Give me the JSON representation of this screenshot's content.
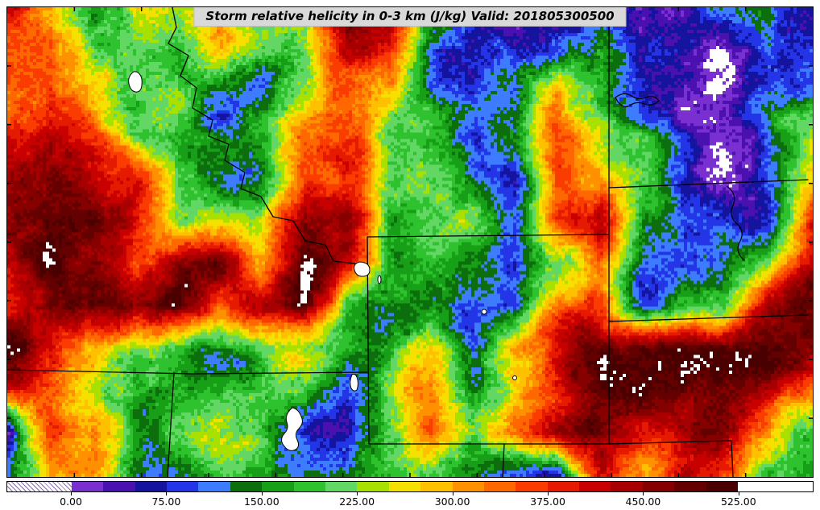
{
  "title": {
    "text": "Storm relative helicity in 0-3 km (J/kg) Valid: 201805300500",
    "background": "#d9d9d9",
    "text_color": "#000000"
  },
  "colorbar": {
    "ticks": [
      "0.00",
      "75.00",
      "150.00",
      "225.00",
      "300.00",
      "375.00",
      "450.00",
      "525.00"
    ],
    "tick_values": [
      0,
      75,
      150,
      225,
      300,
      375,
      450,
      525
    ],
    "bin_size": 25,
    "min": 0,
    "max": 525,
    "under_style": "hatched-white",
    "over_color": "#ffffff",
    "colors": [
      "#7a2fd0",
      "#4a10b0",
      "#14149e",
      "#2335e6",
      "#3d7bff",
      "#0d6e0d",
      "#17a017",
      "#2fc22f",
      "#63d763",
      "#a8e000",
      "#f5e000",
      "#ffc000",
      "#ff9000",
      "#ff6800",
      "#fb3c00",
      "#e61a00",
      "#c90000",
      "#a80000",
      "#860000",
      "#650000",
      "#4a0000"
    ]
  },
  "chart_data": {
    "type": "heatmap",
    "title": "Storm relative helicity in 0-3 km (J/kg) Valid: 201805300500",
    "units": "J/kg",
    "valid_time": "201805300500",
    "colorbar_ticks": [
      0,
      75,
      150,
      225,
      300,
      375,
      450,
      525
    ],
    "value_range": [
      -50,
      585
    ],
    "region": "Northern Rockies and High Plains (MT, ID, WY, UT, CO, SD, NE, NV)",
    "field_grid_note": "Approximate 20x12 grid of storm-relative helicity values (J/kg) sampled row-major from top-left to bottom-right of the map; <0 renders hatched/white, >525 renders white.",
    "field_grid": [
      [
        380,
        330,
        170,
        200,
        160,
        290,
        180,
        170,
        390,
        400,
        300,
        90,
        50,
        90,
        140,
        20,
        10,
        85,
        160,
        95
      ],
      [
        320,
        380,
        250,
        180,
        170,
        310,
        190,
        230,
        410,
        390,
        170,
        85,
        55,
        95,
        140,
        15,
        40,
        80,
        170,
        110
      ],
      [
        260,
        400,
        300,
        180,
        240,
        185,
        175,
        260,
        380,
        300,
        175,
        90,
        80,
        300,
        160,
        20,
        50,
        90,
        175,
        160
      ],
      [
        440,
        470,
        400,
        190,
        180,
        175,
        230,
        370,
        310,
        180,
        170,
        95,
        150,
        390,
        290,
        165,
        85,
        55,
        90,
        230
      ],
      [
        480,
        520,
        460,
        380,
        185,
        180,
        175,
        380,
        360,
        185,
        175,
        165,
        100,
        400,
        300,
        170,
        60,
        40,
        95,
        260
      ],
      [
        470,
        540,
        500,
        390,
        190,
        240,
        230,
        450,
        470,
        180,
        170,
        220,
        95,
        320,
        380,
        90,
        50,
        25,
        100,
        380
      ],
      [
        465,
        530,
        480,
        320,
        390,
        490,
        250,
        515,
        400,
        175,
        185,
        170,
        105,
        160,
        310,
        95,
        55,
        90,
        175,
        390
      ],
      [
        420,
        520,
        500,
        400,
        480,
        330,
        390,
        505,
        190,
        150,
        180,
        100,
        70,
        300,
        380,
        95,
        165,
        180,
        380,
        440
      ],
      [
        460,
        410,
        330,
        190,
        185,
        180,
        190,
        185,
        230,
        180,
        240,
        130,
        300,
        370,
        420,
        450,
        480,
        460,
        420,
        400
      ],
      [
        350,
        390,
        310,
        185,
        180,
        175,
        185,
        180,
        120,
        250,
        300,
        110,
        310,
        380,
        470,
        500,
        480,
        430,
        410,
        330
      ],
      [
        20,
        380,
        390,
        185,
        180,
        175,
        180,
        110,
        90,
        240,
        295,
        170,
        310,
        400,
        465,
        455,
        420,
        410,
        320,
        190
      ],
      [
        120,
        360,
        300,
        180,
        175,
        170,
        175,
        180,
        170,
        230,
        180,
        100,
        80,
        15,
        380,
        310,
        400,
        300,
        190,
        175
      ]
    ],
    "map_features": {
      "state_borders": [
        "Montana-Idaho divide",
        "Wyoming",
        "Montana 104W east border",
        "SD-ND line",
        "SD-NE line",
        "NE-CO corner",
        "42N Idaho-Nevada-Utah line",
        "Nevada-Utah 114W",
        "Utah-Colorado 109W"
      ],
      "lakes": [
        "Flathead Lake",
        "Fort Peck Reservoir",
        "Yellowstone Lake",
        "Bear Lake",
        "Great Salt Lake",
        "Missouri River / Lake Oahe"
      ]
    }
  }
}
